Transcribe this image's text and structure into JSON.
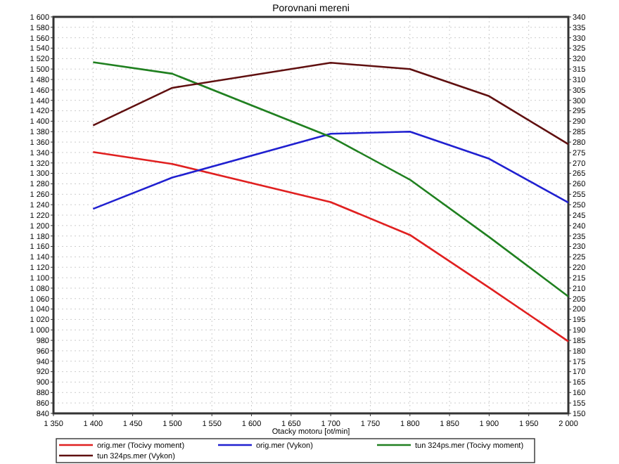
{
  "chart_data": {
    "type": "line",
    "title": "Porovnani mereni",
    "xlabel": "Otacky motoru [ot/min]",
    "x": [
      1400,
      1500,
      1700,
      1800,
      1900,
      2000
    ],
    "xlim": [
      1350,
      2000
    ],
    "xticks": [
      {
        "value": 1350,
        "label": "1 350"
      },
      {
        "value": 1400,
        "label": "1 400"
      },
      {
        "value": 1450,
        "label": "1 450"
      },
      {
        "value": 1500,
        "label": "1 500"
      },
      {
        "value": 1550,
        "label": "1 550"
      },
      {
        "value": 1600,
        "label": "1 600"
      },
      {
        "value": 1650,
        "label": "1 650"
      },
      {
        "value": 1700,
        "label": "1 700"
      },
      {
        "value": 1750,
        "label": "1 750"
      },
      {
        "value": 1800,
        "label": "1 800"
      },
      {
        "value": 1850,
        "label": "1 850"
      },
      {
        "value": 1900,
        "label": "1 900"
      },
      {
        "value": 1950,
        "label": "1 950"
      },
      {
        "value": 2000,
        "label": "2 000"
      }
    ],
    "ylim": [
      840,
      1600
    ],
    "yticks": [
      840,
      860,
      880,
      900,
      920,
      940,
      960,
      980,
      {
        "value": 1000,
        "label": "1 000"
      },
      {
        "value": 1020,
        "label": "1 020"
      },
      {
        "value": 1040,
        "label": "1 040"
      },
      {
        "value": 1060,
        "label": "1 060"
      },
      {
        "value": 1080,
        "label": "1 080"
      },
      {
        "value": 1100,
        "label": "1 100"
      },
      {
        "value": 1120,
        "label": "1 120"
      },
      {
        "value": 1140,
        "label": "1 140"
      },
      {
        "value": 1160,
        "label": "1 160"
      },
      {
        "value": 1180,
        "label": "1 180"
      },
      {
        "value": 1200,
        "label": "1 200"
      },
      {
        "value": 1220,
        "label": "1 220"
      },
      {
        "value": 1240,
        "label": "1 240"
      },
      {
        "value": 1260,
        "label": "1 260"
      },
      {
        "value": 1280,
        "label": "1 280"
      },
      {
        "value": 1300,
        "label": "1 300"
      },
      {
        "value": 1320,
        "label": "1 320"
      },
      {
        "value": 1340,
        "label": "1 340"
      },
      {
        "value": 1360,
        "label": "1 360"
      },
      {
        "value": 1380,
        "label": "1 380"
      },
      {
        "value": 1400,
        "label": "1 400"
      },
      {
        "value": 1420,
        "label": "1 420"
      },
      {
        "value": 1440,
        "label": "1 440"
      },
      {
        "value": 1460,
        "label": "1 460"
      },
      {
        "value": 1480,
        "label": "1 480"
      },
      {
        "value": 1500,
        "label": "1 500"
      },
      {
        "value": 1520,
        "label": "1 520"
      },
      {
        "value": 1540,
        "label": "1 540"
      },
      {
        "value": 1560,
        "label": "1 560"
      },
      {
        "value": 1580,
        "label": "1 580"
      },
      {
        "value": 1600,
        "label": "1 600"
      }
    ],
    "y2lim": [
      150,
      340
    ],
    "y2ticks": [
      150,
      155,
      160,
      165,
      170,
      175,
      180,
      185,
      190,
      195,
      200,
      205,
      210,
      215,
      220,
      225,
      230,
      235,
      240,
      245,
      250,
      255,
      260,
      265,
      270,
      275,
      280,
      285,
      290,
      295,
      300,
      305,
      310,
      315,
      320,
      325,
      330,
      335,
      340
    ],
    "grid": true,
    "legend": "bottom",
    "marker": "none",
    "line_style": "solid",
    "series": [
      {
        "name": "orig.mer  (Tocivy moment)",
        "color": "#e02020",
        "values": [
          1341,
          1318,
          1245,
          1182,
          1081,
          978
        ]
      },
      {
        "name": "orig.mer  (Vykon)",
        "color": "#2020d0",
        "axis": "y2",
        "values": [
          248,
          263,
          284,
          285,
          272,
          251
        ]
      },
      {
        "name": "tun 324ps.mer  (Tocivy moment)",
        "color": "#208020",
        "values": [
          1513,
          1491,
          1370,
          1288,
          1178,
          1064
        ]
      },
      {
        "name": "tun 324ps.mer  (Vykon)",
        "color": "#601010",
        "axis": "y2",
        "values": [
          288,
          306,
          318,
          315,
          302,
          279
        ]
      }
    ]
  }
}
